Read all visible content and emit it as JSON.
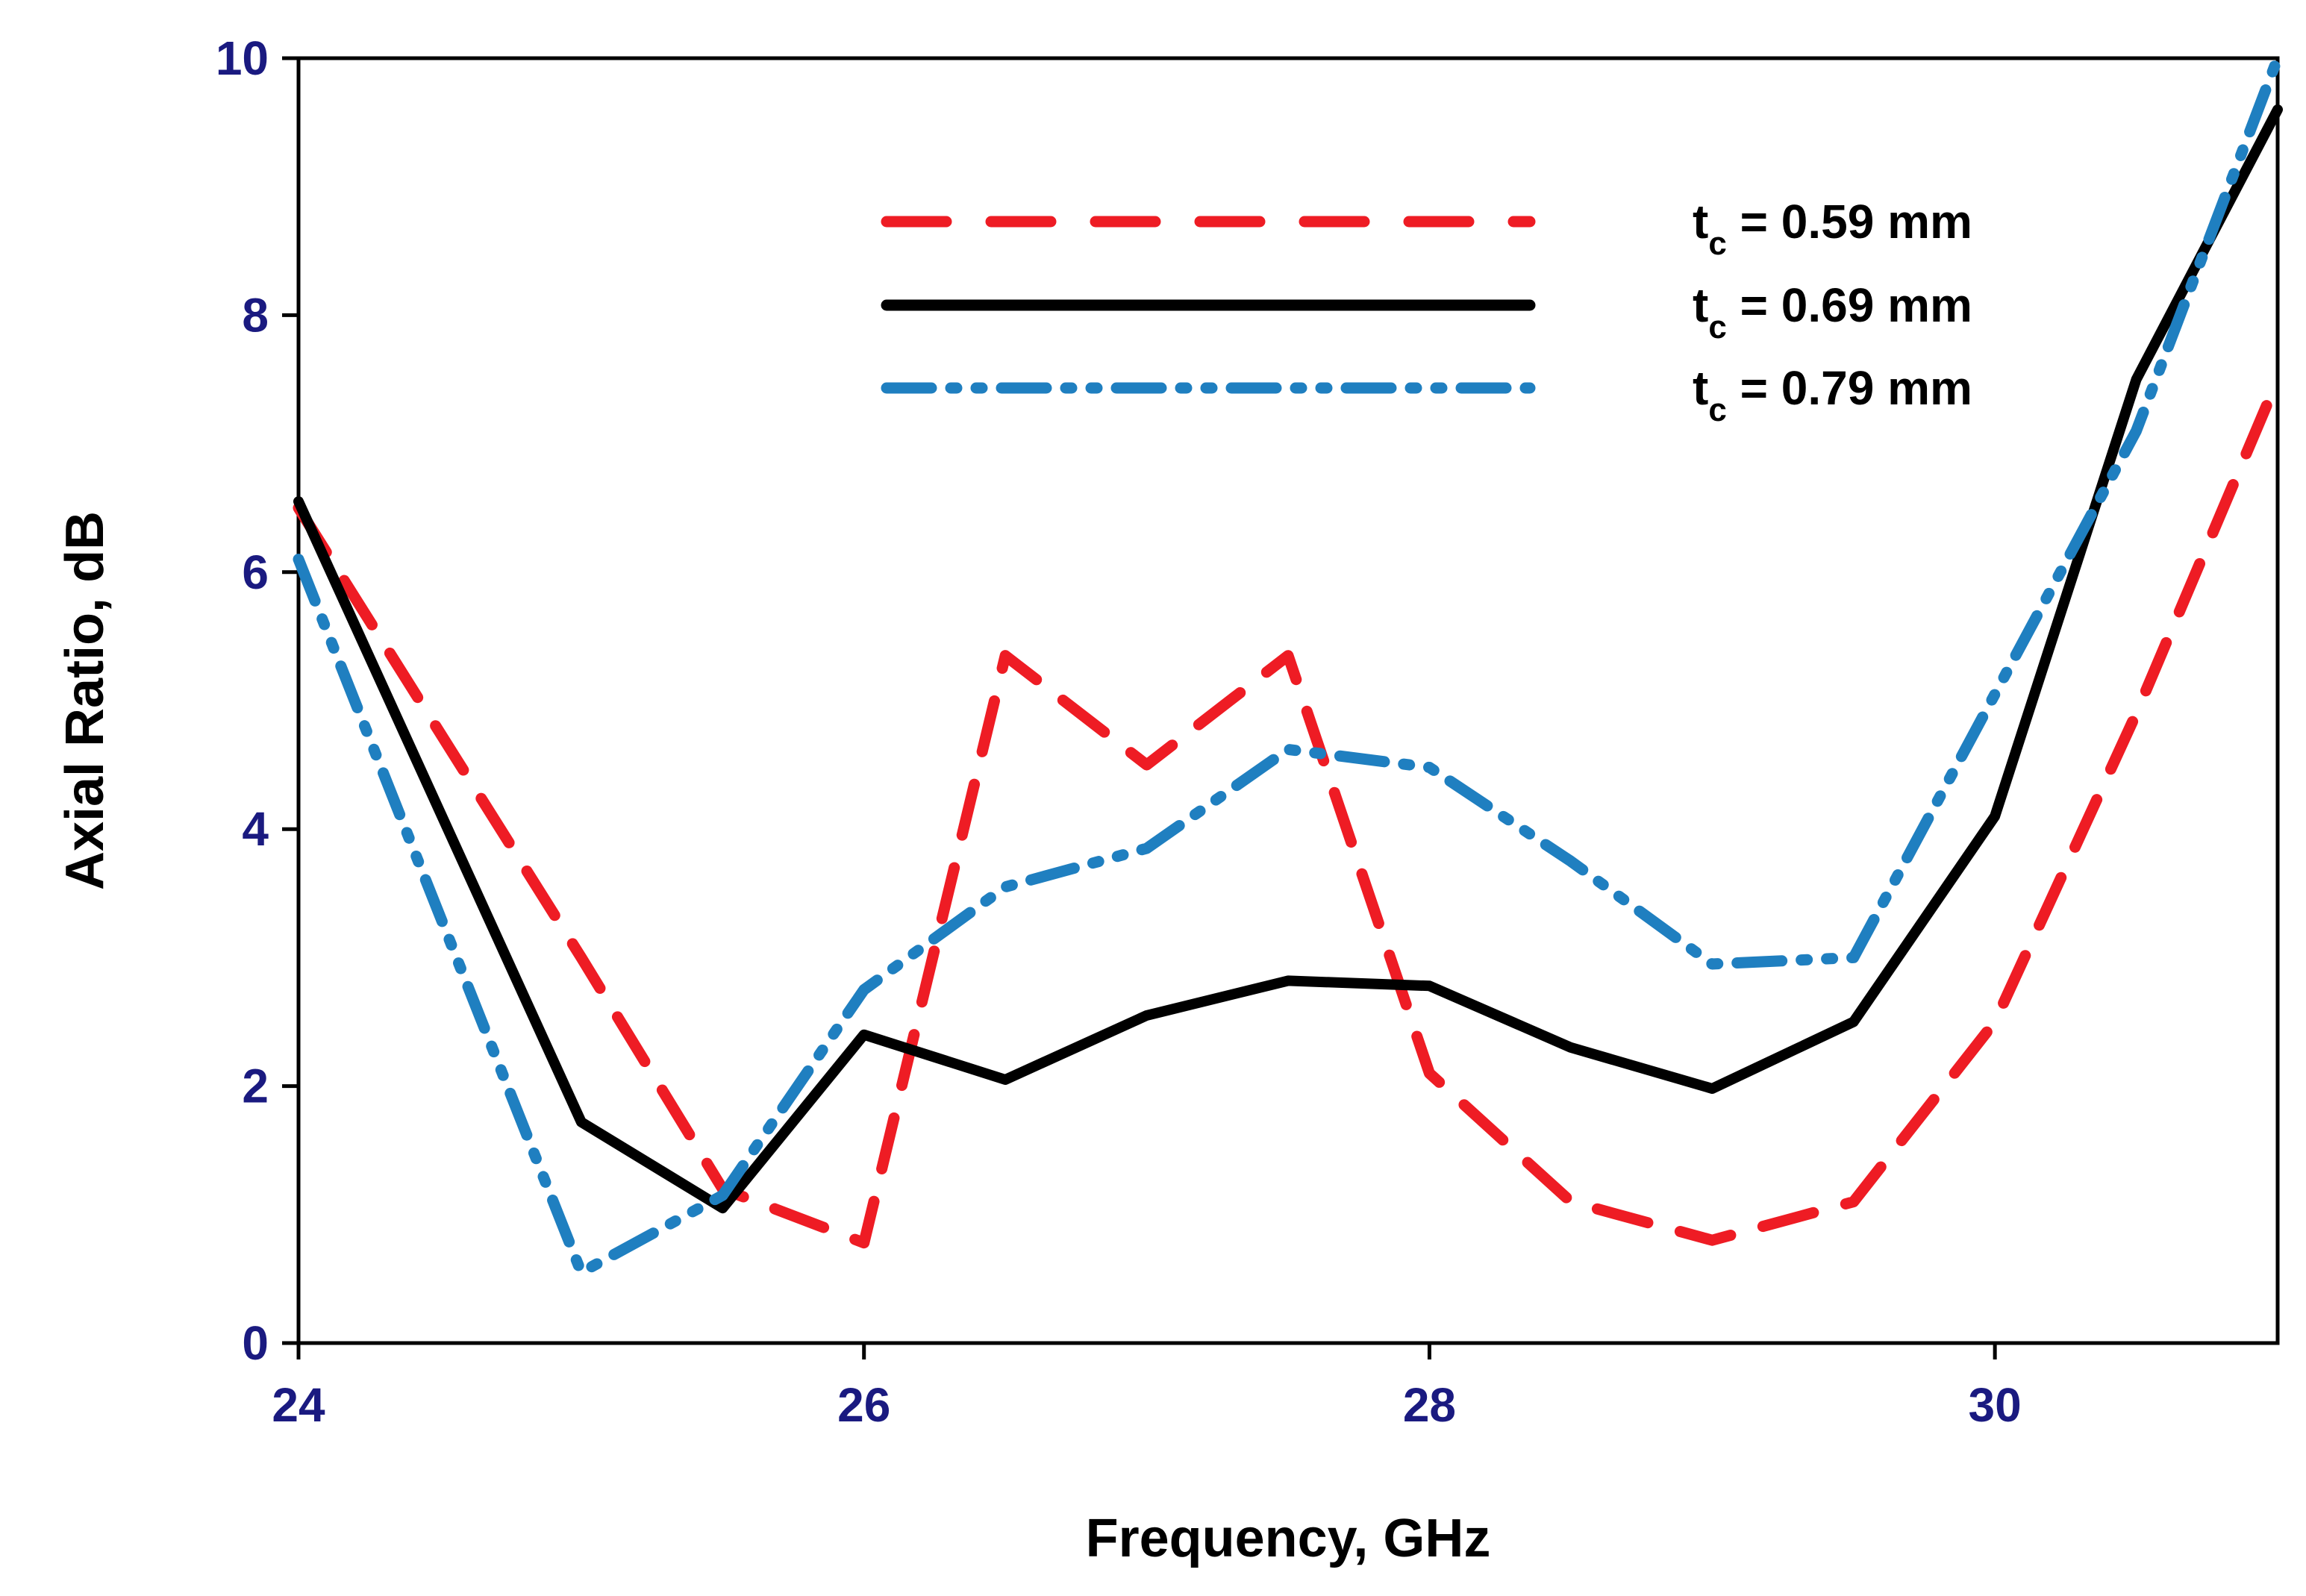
{
  "chart_data": {
    "type": "line",
    "title": "",
    "xlabel": "Frequency, GHz",
    "ylabel": "Axial Ratio, dB",
    "xlim": [
      24,
      31
    ],
    "ylim": [
      0,
      10
    ],
    "xticks": [
      "24",
      "26",
      "28",
      "30"
    ],
    "yticks": [
      "0",
      "2",
      "4",
      "6",
      "8",
      "10"
    ],
    "grid": false,
    "legend_position": "top-right",
    "tick_color": "#1a1a80",
    "x": [
      24,
      25,
      25.5,
      26,
      26.5,
      27,
      27.5,
      28,
      28.5,
      29,
      29.5,
      30,
      30.5,
      31
    ],
    "series": [
      {
        "name": "tc = 0.59 mm",
        "label_main": "t",
        "label_sub": "c",
        "label_rest": " = 0.59 mm",
        "color": "#ee1c24",
        "style": "dashed",
        "values": [
          6.5,
          3.0,
          1.2,
          0.78,
          5.35,
          4.5,
          5.35,
          2.1,
          1.1,
          0.8,
          1.1,
          2.5,
          4.9,
          7.5
        ]
      },
      {
        "name": "tc = 0.69 mm",
        "label_main": "t",
        "label_sub": "c",
        "label_rest": " = 0.69 mm",
        "color": "#000000",
        "style": "solid",
        "values": [
          6.55,
          1.72,
          1.05,
          2.4,
          2.05,
          2.55,
          2.82,
          2.78,
          2.3,
          1.98,
          2.5,
          4.1,
          7.5,
          9.6
        ]
      },
      {
        "name": "tc = 0.79 mm",
        "label_main": "t",
        "label_sub": "c",
        "label_rest": " = 0.79 mm",
        "color": "#1f7fc0",
        "style": "dash-dot-dot",
        "values": [
          6.1,
          0.55,
          1.15,
          2.75,
          3.55,
          3.85,
          4.62,
          4.48,
          3.75,
          2.95,
          3.0,
          5.05,
          7.1,
          10.0
        ]
      }
    ]
  }
}
